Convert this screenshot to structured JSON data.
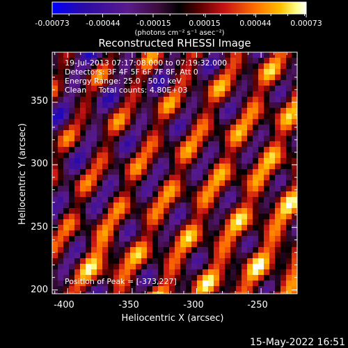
{
  "chart_data": {
    "type": "heatmap",
    "title": "Reconstructed RHESSI Image",
    "xlabel": "Heliocentric X (arcsec)",
    "ylabel": "Heliocentric Y (arcsec)",
    "xlim": [
      -412,
      -222
    ],
    "ylim": [
      197,
      390
    ],
    "x_ticks": [
      -400,
      -350,
      -300,
      -250
    ],
    "y_ticks": [
      200,
      250,
      300,
      350
    ],
    "x_tick_labels": [
      "-400",
      "-350",
      "-300",
      "-250"
    ],
    "y_tick_labels": [
      "200",
      "250",
      "300",
      "350"
    ],
    "colorbar": {
      "range": [
        -0.00073,
        0.00073
      ],
      "tick_labels": [
        "-0.00073",
        "-0.00044",
        "-0.00015",
        "0.00015",
        "0.00044",
        "0.00073"
      ],
      "ticks": [
        -0.00073,
        -0.00044,
        -0.00015,
        0.00015,
        0.00044,
        0.00073
      ],
      "units": "(photons cm⁻² s⁻¹ asec⁻²)",
      "colors": [
        "#0000ff",
        "#2a0aa8",
        "#5a1a8a",
        "#3a0d3a",
        "#000000",
        "#5a0000",
        "#c81414",
        "#ff7000",
        "#ffc000",
        "#ffff80",
        "#ffffff"
      ]
    },
    "annotations": [
      "19-Jul-2013 07:17:08.000 to 07:19:32.000",
      "Detectors: 3F 4F 5F 6F 7F 8F, Att 0",
      "Energy Range: 25.0 - 50.0 keV",
      "Clean     Total counts: 4.80E+03"
    ],
    "peak_label": "Position of Peak = [-373,227]",
    "peak_position": [
      -373,
      227
    ],
    "footer_timestamp": "15-May-2022 16:51",
    "grid": false
  }
}
